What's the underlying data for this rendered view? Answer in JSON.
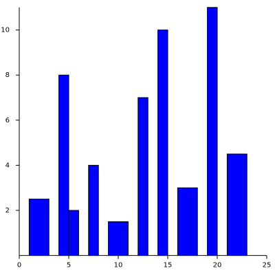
{
  "chart_data": {
    "type": "bar",
    "x_start": [
      1,
      4,
      5,
      7,
      9,
      12,
      14,
      16,
      19,
      21
    ],
    "x_end": [
      3,
      5,
      6,
      8,
      11,
      13,
      15,
      18,
      20,
      23
    ],
    "values": [
      2.5,
      8,
      2,
      4,
      1.5,
      7,
      10,
      3,
      11,
      4.5
    ],
    "color": "#0000ff",
    "xlim": [
      0,
      25
    ],
    "xticks": [
      0,
      5,
      10,
      15,
      20,
      25
    ],
    "ylim": [
      0,
      11
    ],
    "yticks": [
      2,
      4,
      6,
      8,
      10
    ]
  }
}
